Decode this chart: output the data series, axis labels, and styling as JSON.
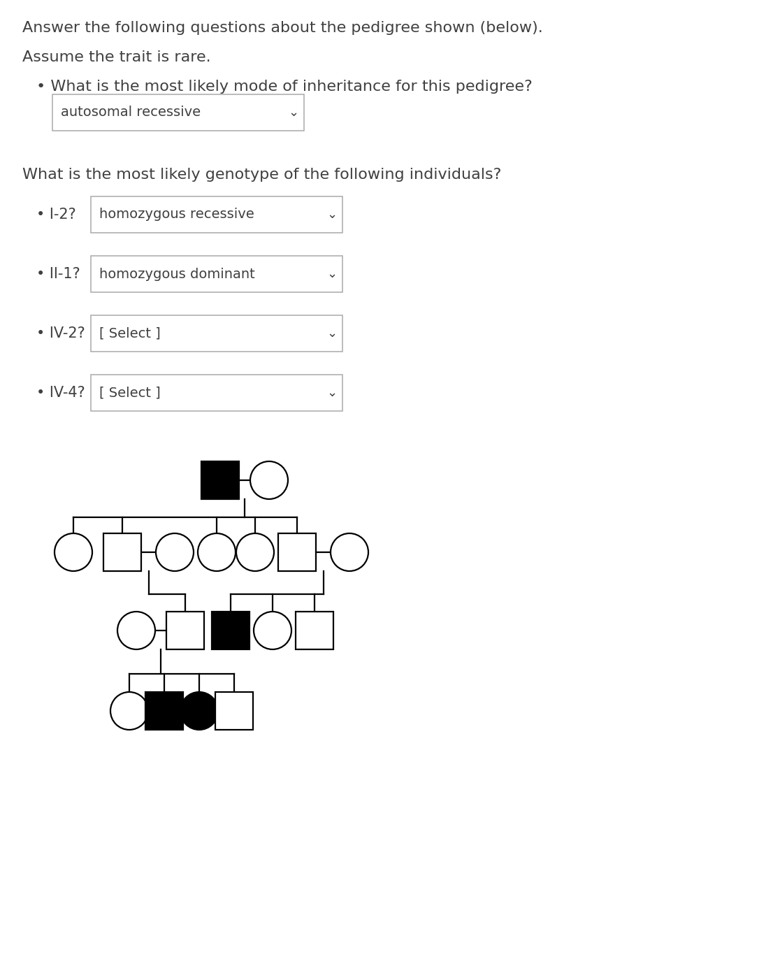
{
  "bg_color": "#ffffff",
  "text_color": "#404040",
  "title_line1": "Answer the following questions about the pedigree shown (below).",
  "title_line2": "Assume the trait is rare.",
  "bullet1_q": "What is the most likely mode of inheritance for this pedigree?",
  "bullet1_a": "autosomal recessive",
  "section2": "What is the most likely genotype of the following individuals?",
  "q1_label": "• I-2?",
  "q1_answer": "homozygous recessive",
  "q2_label": "• II-1?",
  "q2_answer": "homozygous dominant",
  "q3_label": "• IV-2?",
  "q3_answer": "[ Select ]",
  "q4_label": "• IV-4?",
  "q4_answer": "[ Select ]",
  "font_size_title": 16,
  "font_size_body": 15,
  "font_size_small": 14
}
